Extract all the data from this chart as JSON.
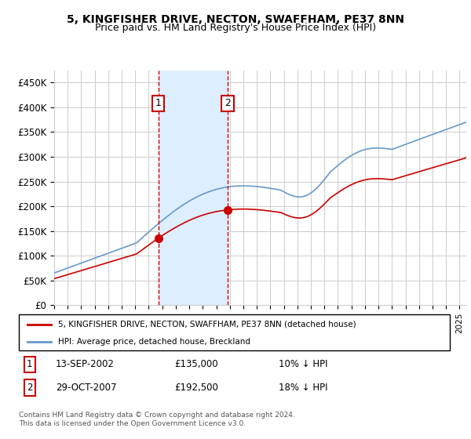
{
  "title": "5, KINGFISHER DRIVE, NECTON, SWAFFHAM, PE37 8NN",
  "subtitle": "Price paid vs. HM Land Registry's House Price Index (HPI)",
  "ylabel_ticks": [
    "£0",
    "£50K",
    "£100K",
    "£150K",
    "£200K",
    "£250K",
    "£300K",
    "£350K",
    "£400K",
    "£450K"
  ],
  "ytick_vals": [
    0,
    50000,
    100000,
    150000,
    200000,
    250000,
    300000,
    350000,
    400000,
    450000
  ],
  "ylim": [
    0,
    475000
  ],
  "xlim_start": 1995.0,
  "xlim_end": 2025.5,
  "purchase1_date": 2002.71,
  "purchase1_price": 135000,
  "purchase1_label": "1",
  "purchase2_date": 2007.83,
  "purchase2_price": 192500,
  "purchase2_label": "2",
  "shade_start": 2002.71,
  "shade_end": 2007.83,
  "legend_line1": "5, KINGFISHER DRIVE, NECTON, SWAFFHAM, PE37 8NN (detached house)",
  "legend_line2": "HPI: Average price, detached house, Breckland",
  "table_row1": [
    "1",
    "13-SEP-2002",
    "£135,000",
    "10% ↓ HPI"
  ],
  "table_row2": [
    "2",
    "29-OCT-2007",
    "£192,500",
    "18% ↓ HPI"
  ],
  "footnote": "Contains HM Land Registry data © Crown copyright and database right 2024.\nThis data is licensed under the Open Government Licence v3.0.",
  "hpi_color": "#6699cc",
  "price_color": "#cc0000",
  "shade_color": "#ddeeff",
  "marker_color": "#cc0000",
  "box_color": "#cc0000",
  "grid_color": "#cccccc",
  "bg_color": "#ffffff"
}
